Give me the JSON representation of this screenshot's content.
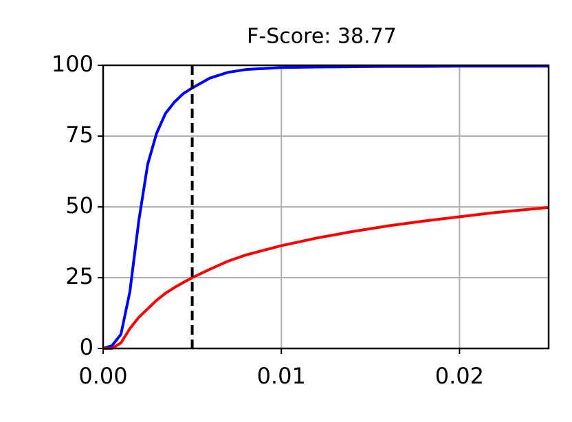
{
  "chart_data": {
    "type": "line",
    "title": "F-Score: 38.77",
    "x": [
      0,
      0.0005,
      0.001,
      0.0015,
      0.002,
      0.0025,
      0.003,
      0.0035,
      0.004,
      0.0045,
      0.005,
      0.006,
      0.007,
      0.008,
      0.01,
      0.012,
      0.014,
      0.016,
      0.018,
      0.02,
      0.022,
      0.025
    ],
    "series": [
      {
        "color": "#0000ff",
        "values": [
          0,
          1,
          5,
          20,
          45,
          65,
          76,
          83,
          87,
          90,
          92,
          95.5,
          97.5,
          98.5,
          99.2,
          99.4,
          99.5,
          99.6,
          99.6,
          99.7,
          99.7,
          99.7
        ]
      },
      {
        "color": "#ff0000",
        "values": [
          0,
          0,
          2,
          7,
          11,
          14,
          17,
          19.5,
          21.5,
          23.3,
          25,
          28,
          30.8,
          33,
          36.3,
          39,
          41.3,
          43.3,
          45,
          46.5,
          48,
          49.8
        ]
      }
    ],
    "threshold": 0.005,
    "xlim": [
      0,
      0.025
    ],
    "xticks": [
      {
        "value": 0,
        "label": "0.00"
      },
      0.01,
      0.02
    ],
    "ylim": [
      0,
      100
    ],
    "yticks": [
      0,
      25,
      50,
      75,
      100
    ],
    "grid": true
  }
}
